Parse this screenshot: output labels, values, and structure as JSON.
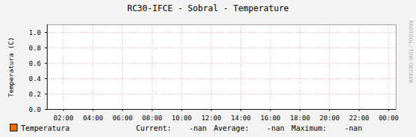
{
  "chart_data": {
    "type": "line",
    "title": "RC30-IFCE - Sobral - Temperature",
    "y_label": "Temperatura (C)",
    "x": [
      2,
      4,
      6,
      8,
      10,
      12,
      14,
      16,
      18,
      20,
      22,
      24
    ],
    "series": [
      {
        "name": "Temperatura",
        "color": "#f06d00",
        "values": [
          null,
          null,
          null,
          null,
          null,
          null,
          null,
          null,
          null,
          null,
          null,
          null
        ]
      }
    ],
    "stats": [
      {
        "label": "Current:",
        "value": "-nan"
      },
      {
        "label": "Average:",
        "value": "-nan"
      },
      {
        "label": "Maximum:",
        "value": "-nan"
      }
    ],
    "xlim": [
      0.9,
      24.5
    ],
    "xticks": [
      {
        "value": 2,
        "label": "02:00"
      },
      {
        "value": 4,
        "label": "04:00"
      },
      {
        "value": 6,
        "label": "06:00"
      },
      {
        "value": 8,
        "label": "08:00"
      },
      {
        "value": 10,
        "label": "10:00"
      },
      {
        "value": 12,
        "label": "12:00"
      },
      {
        "value": 14,
        "label": "14:00"
      },
      {
        "value": 16,
        "label": "16:00"
      },
      {
        "value": 18,
        "label": "18:00"
      },
      {
        "value": 20,
        "label": "20:00"
      },
      {
        "value": 22,
        "label": "22:00"
      },
      {
        "value": 24,
        "label": "00:00"
      }
    ],
    "ylim": [
      0,
      1.1
    ],
    "yticks": [
      {
        "value": 0,
        "label": "0.0"
      },
      {
        "value": 0.2,
        "label": "0.2"
      },
      {
        "value": 0.4,
        "label": "0.4"
      },
      {
        "value": 0.6,
        "label": "0.6"
      },
      {
        "value": 0.8,
        "label": "0.8"
      },
      {
        "value": 1,
        "label": "1.0"
      }
    ],
    "grid": true,
    "legend": "bottom-left",
    "watermark": "RRDTOOL / TOBI OETIKER"
  }
}
